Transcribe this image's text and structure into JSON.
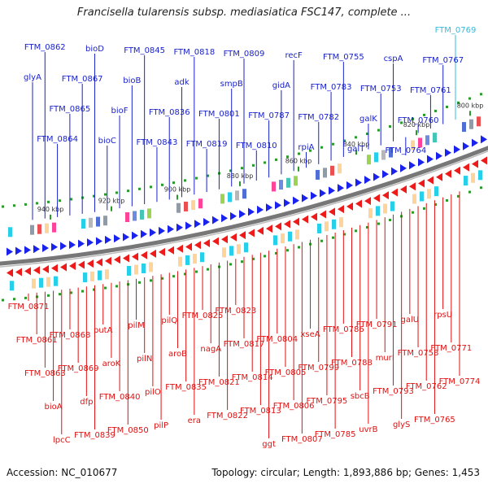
{
  "title": "Francisella tularensis subsp. mediasiatica FSC147, complete ...",
  "footer": {
    "accession": "Accession: NC_010677",
    "summary": "Topology: circular; Length: 1,893,886 bp; Genes: 1,453"
  },
  "colors": {
    "forward_label": "#1a22cc",
    "reverse_label": "#e01010",
    "highlight_label": "#33bbdd",
    "backbone": "#777777",
    "tick": "#2a9a2a"
  },
  "scale_ticks": [
    "940 kbp",
    "920 kbp",
    "900 kbp",
    "880 kbp",
    "860 kbp",
    "840 kbp",
    "820 kbp",
    "800 kbp"
  ],
  "forward_genes": [
    "FTM_0769",
    "FTM_0767",
    "FTM_0761",
    "FTM_0760",
    "FTM_0764",
    "cspA",
    "FTM_0753",
    "galK",
    "galT",
    "FTM_0755",
    "FTM_0783",
    "FTM_0782",
    "rpiA",
    "recF",
    "gidA",
    "FTM_0787",
    "FTM_0810",
    "FTM_0809",
    "smpB",
    "FTM_0801",
    "FTM_0819",
    "FTM_0818",
    "adk",
    "FTM_0836",
    "FTM_0843",
    "FTM_0845",
    "bioB",
    "bioF",
    "bioC",
    "bioD",
    "FTM_0867",
    "FTM_0865",
    "FTM_0864",
    "FTM_0862",
    "glyA"
  ],
  "reverse_genes": [
    "FTM_0871",
    "FTM_0861",
    "FTM_0863",
    "bioA",
    "lpcC",
    "FTM_0868",
    "FTM_0869",
    "dfp",
    "FTM_0839",
    "putA",
    "aroK",
    "FTM_0840",
    "FTM_0850",
    "pilM",
    "pilN",
    "pilO",
    "pilP",
    "pilQ",
    "aroB",
    "FTM_0835",
    "era",
    "FTM_0825",
    "nagA",
    "FTM_0821",
    "FTM_0822",
    "FTM_0823",
    "FTM_0817",
    "FTM_0814",
    "FTM_0813",
    "ggt",
    "FTM_0804",
    "FTM_0805",
    "FTM_0806",
    "FTM_0807",
    "xseA",
    "FTM_0799",
    "FTM_0795",
    "FTM_0785",
    "FTM_0786",
    "FTM_0788",
    "sbcB",
    "uvrB",
    "FTM_0791",
    "murI",
    "FTM_0793",
    "glyS",
    "galU",
    "FTM_0758",
    "FTM_0762",
    "FTM_0765",
    "rpsU",
    "FTM_0771",
    "FTM_0774"
  ]
}
